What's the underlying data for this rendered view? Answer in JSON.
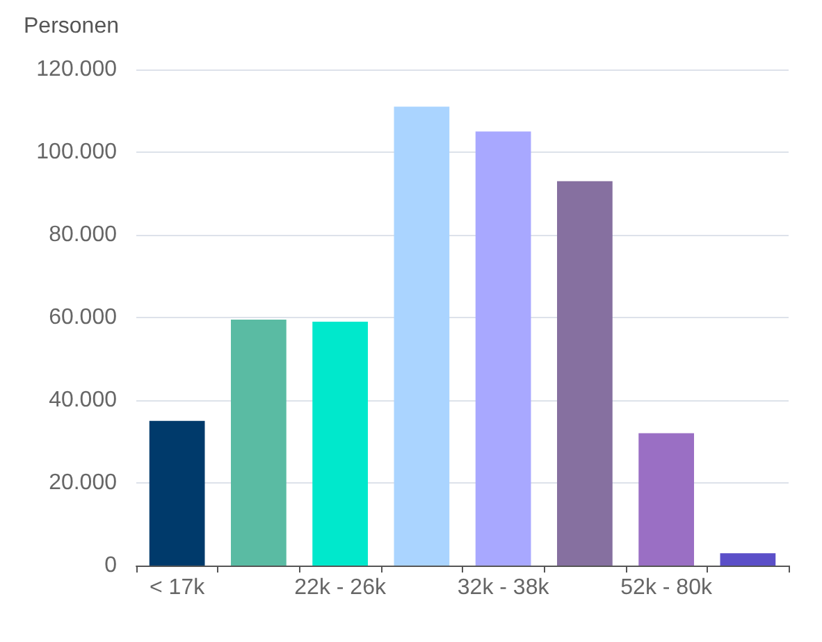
{
  "chart_data": {
    "type": "bar",
    "ylabel": "Personen",
    "categories": [
      "< 17k",
      null,
      "22k - 26k",
      null,
      "32k - 38k",
      null,
      "52k - 80k",
      null
    ],
    "values": [
      35000,
      59500,
      59000,
      111000,
      105000,
      93000,
      32000,
      3000
    ],
    "colors": [
      "#003a6b",
      "#5abba3",
      "#00e8cc",
      "#aad4ff",
      "#a8a8ff",
      "#8670a0",
      "#9a6fc4",
      "#5b4fc8"
    ],
    "ylim": [
      0,
      120000
    ],
    "yticks": [
      0,
      {
        "value": 20000,
        "label": "20.000"
      },
      {
        "value": 40000,
        "label": "40.000"
      },
      {
        "value": 60000,
        "label": "60.000"
      },
      {
        "value": 80000,
        "label": "80.000"
      },
      {
        "value": 100000,
        "label": "100.000"
      },
      {
        "value": 120000,
        "label": "120.000"
      }
    ],
    "grid": "y"
  }
}
